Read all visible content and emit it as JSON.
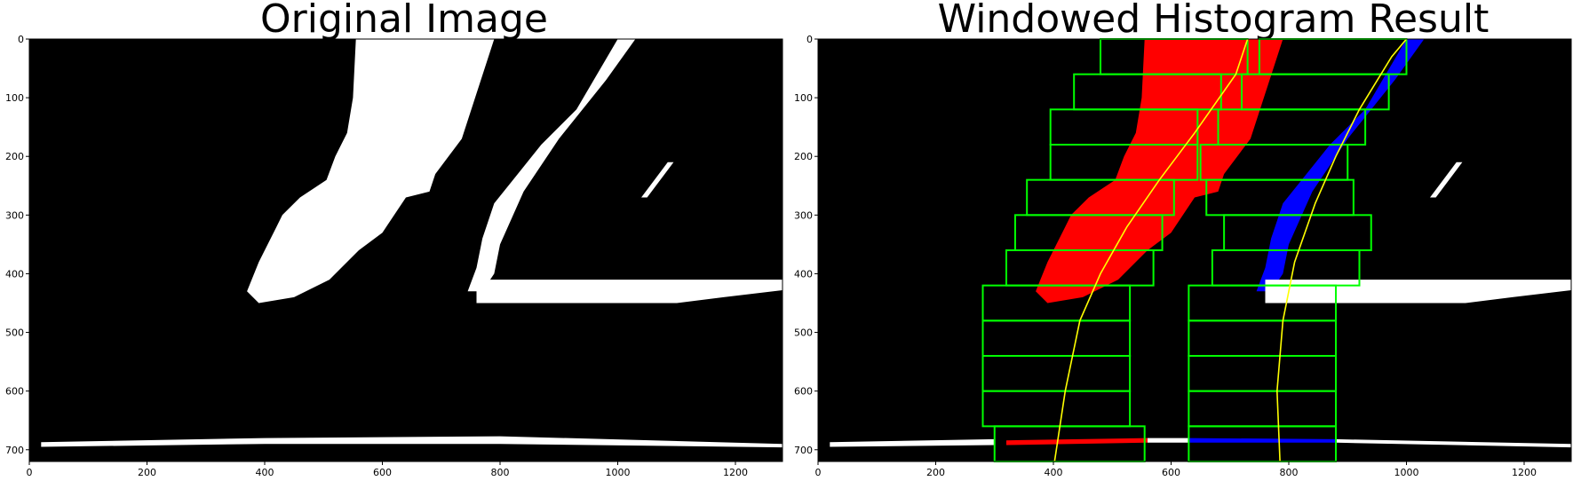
{
  "chart_data": [
    {
      "type": "image",
      "title": "Original Image",
      "xlim": [
        0,
        1280
      ],
      "ylim": [
        720,
        0
      ],
      "xticks": [
        0,
        200,
        400,
        600,
        800,
        1000,
        1200
      ],
      "yticks": [
        0,
        100,
        200,
        300,
        400,
        500,
        600,
        700
      ],
      "background_color": "#000000",
      "pixel_color": "#ffffff",
      "regions": [
        {
          "name": "left-lane-blob",
          "color": "#ffffff",
          "points": [
            [
              555,
              0
            ],
            [
              790,
              0
            ],
            [
              735,
              170
            ],
            [
              690,
              230
            ],
            [
              680,
              260
            ],
            [
              640,
              270
            ],
            [
              600,
              330
            ],
            [
              560,
              360
            ],
            [
              510,
              410
            ],
            [
              450,
              440
            ],
            [
              390,
              450
            ],
            [
              370,
              430
            ],
            [
              390,
              380
            ],
            [
              420,
              320
            ],
            [
              430,
              300
            ],
            [
              460,
              270
            ],
            [
              505,
              240
            ],
            [
              520,
              200
            ],
            [
              540,
              160
            ],
            [
              550,
              100
            ]
          ]
        },
        {
          "name": "right-lane-line",
          "color": "#ffffff",
          "points": [
            [
              1000,
              0
            ],
            [
              1030,
              0
            ],
            [
              980,
              70
            ],
            [
              900,
              170
            ],
            [
              840,
              260
            ],
            [
              800,
              350
            ],
            [
              790,
              400
            ],
            [
              770,
              430
            ],
            [
              745,
              430
            ],
            [
              760,
              390
            ],
            [
              770,
              340
            ],
            [
              790,
              280
            ],
            [
              830,
              230
            ],
            [
              870,
              180
            ],
            [
              930,
              120
            ]
          ]
        },
        {
          "name": "horizontal-mark",
          "color": "#ffffff",
          "points": [
            [
              760,
              410
            ],
            [
              1280,
              410
            ],
            [
              1280,
              428
            ],
            [
              1180,
              440
            ],
            [
              1100,
              450
            ],
            [
              980,
              450
            ],
            [
              800,
              450
            ],
            [
              760,
              450
            ]
          ]
        },
        {
          "name": "small-dash",
          "color": "#ffffff",
          "points": [
            [
              1085,
              210
            ],
            [
              1095,
              210
            ],
            [
              1050,
              270
            ],
            [
              1040,
              270
            ]
          ]
        },
        {
          "name": "bottom-line",
          "color": "#ffffff",
          "points": [
            [
              20,
              687
            ],
            [
              400,
              680
            ],
            [
              800,
              677
            ],
            [
              1280,
              690
            ],
            [
              1280,
              696
            ],
            [
              800,
              690
            ],
            [
              400,
              690
            ],
            [
              20,
              695
            ]
          ]
        }
      ]
    },
    {
      "type": "image",
      "title": "Windowed Histogram Result",
      "xlim": [
        0,
        1280
      ],
      "ylim": [
        720,
        0
      ],
      "xticks": [
        0,
        200,
        400,
        600,
        800,
        1000,
        1200
      ],
      "yticks": [
        0,
        100,
        200,
        300,
        400,
        500,
        600,
        700
      ],
      "background_color": "#000000",
      "window_color": "#00ff00",
      "fit_color": "#ffff00",
      "regions": [
        {
          "name": "left-lane-pixels",
          "color": "#ff0000",
          "points": [
            [
              555,
              0
            ],
            [
              790,
              0
            ],
            [
              735,
              170
            ],
            [
              690,
              230
            ],
            [
              680,
              260
            ],
            [
              640,
              270
            ],
            [
              600,
              330
            ],
            [
              560,
              360
            ],
            [
              510,
              410
            ],
            [
              450,
              440
            ],
            [
              390,
              450
            ],
            [
              370,
              430
            ],
            [
              390,
              380
            ],
            [
              420,
              320
            ],
            [
              430,
              300
            ],
            [
              460,
              270
            ],
            [
              505,
              240
            ],
            [
              520,
              200
            ],
            [
              540,
              160
            ],
            [
              550,
              100
            ]
          ]
        },
        {
          "name": "right-lane-pixels",
          "color": "#0000ff",
          "points": [
            [
              1000,
              0
            ],
            [
              1030,
              0
            ],
            [
              980,
              70
            ],
            [
              900,
              170
            ],
            [
              840,
              260
            ],
            [
              800,
              350
            ],
            [
              790,
              400
            ],
            [
              770,
              430
            ],
            [
              745,
              430
            ],
            [
              760,
              390
            ],
            [
              770,
              340
            ],
            [
              790,
              280
            ],
            [
              830,
              230
            ],
            [
              870,
              180
            ],
            [
              930,
              120
            ]
          ]
        },
        {
          "name": "horizontal-mark",
          "color": "#ffffff",
          "points": [
            [
              760,
              410
            ],
            [
              1280,
              410
            ],
            [
              1280,
              428
            ],
            [
              1180,
              440
            ],
            [
              1100,
              450
            ],
            [
              980,
              450
            ],
            [
              800,
              450
            ],
            [
              760,
              450
            ]
          ]
        },
        {
          "name": "small-dash",
          "color": "#ffffff",
          "points": [
            [
              1085,
              210
            ],
            [
              1095,
              210
            ],
            [
              1050,
              270
            ],
            [
              1040,
              270
            ]
          ]
        },
        {
          "name": "bottom-line-left",
          "color": "#ffffff",
          "points": [
            [
              20,
              687
            ],
            [
              300,
              682
            ],
            [
              300,
              692
            ],
            [
              20,
              695
            ]
          ]
        },
        {
          "name": "bottom-line-red",
          "color": "#ff0000",
          "points": [
            [
              320,
              684
            ],
            [
              560,
              680
            ],
            [
              560,
              688
            ],
            [
              320,
              692
            ]
          ]
        },
        {
          "name": "bottom-line-middle",
          "color": "#ffffff",
          "points": [
            [
              560,
              680
            ],
            [
              630,
              680
            ],
            [
              630,
              688
            ],
            [
              560,
              688
            ]
          ]
        },
        {
          "name": "bottom-line-blue",
          "color": "#0000ff",
          "points": [
            [
              630,
              680
            ],
            [
              880,
              682
            ],
            [
              880,
              688
            ],
            [
              630,
              688
            ]
          ]
        },
        {
          "name": "bottom-line-right",
          "color": "#ffffff",
          "points": [
            [
              880,
              682
            ],
            [
              1280,
              690
            ],
            [
              1280,
              696
            ],
            [
              880,
              688
            ]
          ]
        }
      ],
      "windows": [
        [
          300,
          660,
          555,
          720
        ],
        [
          280,
          600,
          530,
          660
        ],
        [
          280,
          540,
          530,
          600
        ],
        [
          280,
          480,
          530,
          540
        ],
        [
          280,
          420,
          530,
          480
        ],
        [
          320,
          360,
          570,
          420
        ],
        [
          335,
          300,
          585,
          360
        ],
        [
          355,
          240,
          605,
          300
        ],
        [
          395,
          180,
          645,
          240
        ],
        [
          395,
          120,
          645,
          180
        ],
        [
          435,
          60,
          685,
          120
        ],
        [
          480,
          0,
          730,
          60
        ],
        [
          630,
          660,
          880,
          720
        ],
        [
          630,
          600,
          880,
          660
        ],
        [
          630,
          540,
          880,
          600
        ],
        [
          630,
          480,
          880,
          540
        ],
        [
          630,
          420,
          880,
          480
        ],
        [
          670,
          360,
          920,
          420
        ],
        [
          690,
          300,
          940,
          360
        ],
        [
          660,
          240,
          910,
          300
        ],
        [
          650,
          180,
          900,
          240
        ],
        [
          680,
          120,
          930,
          180
        ],
        [
          720,
          60,
          970,
          120
        ],
        [
          750,
          0,
          1000,
          60
        ]
      ],
      "fits": [
        {
          "name": "left-fit",
          "points": [
            [
              402,
              720
            ],
            [
              420,
              600
            ],
            [
              445,
              480
            ],
            [
              480,
              400
            ],
            [
              525,
              320
            ],
            [
              580,
              240
            ],
            [
              640,
              160
            ],
            [
              710,
              60
            ],
            [
              730,
              0
            ]
          ]
        },
        {
          "name": "right-fit",
          "points": [
            [
              785,
              720
            ],
            [
              780,
              600
            ],
            [
              790,
              480
            ],
            [
              810,
              380
            ],
            [
              845,
              280
            ],
            [
              880,
              200
            ],
            [
              920,
              120
            ],
            [
              975,
              30
            ],
            [
              1000,
              0
            ]
          ]
        }
      ]
    }
  ]
}
